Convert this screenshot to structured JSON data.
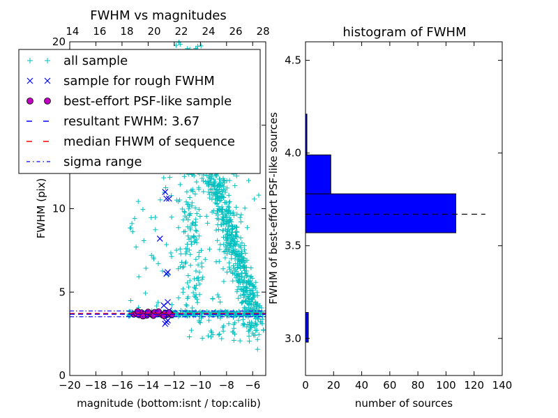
{
  "chart_data": [
    {
      "type": "scatter",
      "title": "FWHM vs magnitudes",
      "xlabel": "magnitude (bottom:isnt / top:calib)",
      "ylabel": "FWHM (pix)",
      "xlim": [
        -20,
        -5
      ],
      "ylim": [
        0,
        20
      ],
      "top_xlim": [
        13.8,
        28.2
      ],
      "x_ticks": [
        "−20",
        "−18",
        "−16",
        "−14",
        "−12",
        "−10",
        "−8",
        "−6"
      ],
      "x_tick_values": [
        -20,
        -18,
        -16,
        -14,
        -12,
        -10,
        -8,
        -6
      ],
      "top_x_ticks": [
        "14",
        "16",
        "18",
        "20",
        "22",
        "24",
        "26",
        "28"
      ],
      "top_x_tick_values": [
        14,
        16,
        18,
        20,
        22,
        24,
        26,
        28
      ],
      "y_ticks": [
        "0",
        "5",
        "10",
        "15",
        "20"
      ],
      "y_tick_values": [
        0,
        5,
        10,
        15,
        20
      ],
      "grid": false,
      "legend_position": "upper-left",
      "legend": [
        {
          "label": "all sample",
          "marker": "plus",
          "color": "#00bfbf"
        },
        {
          "label": "sample for rough FWHM",
          "marker": "x",
          "color": "#0000ff"
        },
        {
          "label": "best-effort PSF-like sample",
          "marker": "circle",
          "color": "#bf00bf"
        },
        {
          "label": "resultant FWHM: 3.67",
          "marker": "dashed",
          "color": "#0000ff"
        },
        {
          "label": "median FHWM of sequence",
          "marker": "dashed",
          "color": "#ff0000"
        },
        {
          "label": "sigma range",
          "marker": "dashdot",
          "color": "#0000ff"
        }
      ],
      "hlines": {
        "resultant": 3.67,
        "median": 3.72,
        "sigma_low": 3.52,
        "sigma_high": 3.87
      },
      "series": [
        {
          "name": "sample for rough FWHM",
          "color": "#0000ff",
          "x": [
            -12.7,
            -12.6,
            -12.4,
            -12.5,
            -12.6,
            -13.1,
            -12.8,
            -12.5,
            -12.4,
            -12.6,
            -12.7,
            -12.5,
            -12.4
          ],
          "y": [
            11.0,
            10.6,
            10.6,
            6.2,
            6.1,
            8.2,
            4.2,
            4.4,
            3.9,
            3.2,
            3.1,
            3.3,
            3.6
          ]
        },
        {
          "name": "best-effort PSF-like sample",
          "color": "#bf00bf",
          "x": [
            -15.1,
            -14.9,
            -14.7,
            -14.5,
            -14.3,
            -14.1,
            -13.9,
            -13.7,
            -13.5,
            -13.3,
            -13.1,
            -12.9,
            -12.7,
            -12.5,
            -12.3,
            -12.2,
            -14.8,
            -14.4,
            -14.0,
            -13.6,
            -13.2,
            -12.8,
            -12.4
          ],
          "y": [
            3.66,
            3.72,
            3.62,
            3.78,
            3.68,
            3.59,
            3.75,
            3.64,
            3.8,
            3.67,
            3.7,
            3.61,
            3.76,
            3.65,
            3.72,
            3.63,
            3.85,
            3.55,
            3.82,
            3.58,
            3.84,
            3.57,
            3.79
          ]
        }
      ]
    },
    {
      "type": "histogram",
      "title": "histogram of FWHM",
      "xlabel": "number of sources",
      "ylabel": "FWHM of best-effort PSF-like sources",
      "xlim": [
        0,
        140
      ],
      "ylim": [
        2.8,
        4.6
      ],
      "x_ticks": [
        "0",
        "20",
        "40",
        "60",
        "80",
        "100",
        "120",
        "140"
      ],
      "x_tick_values": [
        0,
        20,
        40,
        60,
        80,
        100,
        120,
        140
      ],
      "y_ticks": [
        "3.0",
        "3.5",
        "4.0",
        "4.5"
      ],
      "y_tick_values": [
        3.0,
        3.5,
        4.0,
        4.5
      ],
      "orientation": "horizontal",
      "bar_color": "#0000ff",
      "bins": [
        {
          "y_low": 2.98,
          "y_high": 3.14,
          "count": 2
        },
        {
          "y_low": 3.57,
          "y_high": 3.78,
          "count": 107
        },
        {
          "y_low": 3.78,
          "y_high": 3.99,
          "count": 18
        },
        {
          "y_low": 3.99,
          "y_high": 4.21,
          "count": 1
        }
      ],
      "reference_line": {
        "y": 3.67,
        "x_end": 128,
        "style": "dashed",
        "color": "#000000"
      }
    }
  ]
}
